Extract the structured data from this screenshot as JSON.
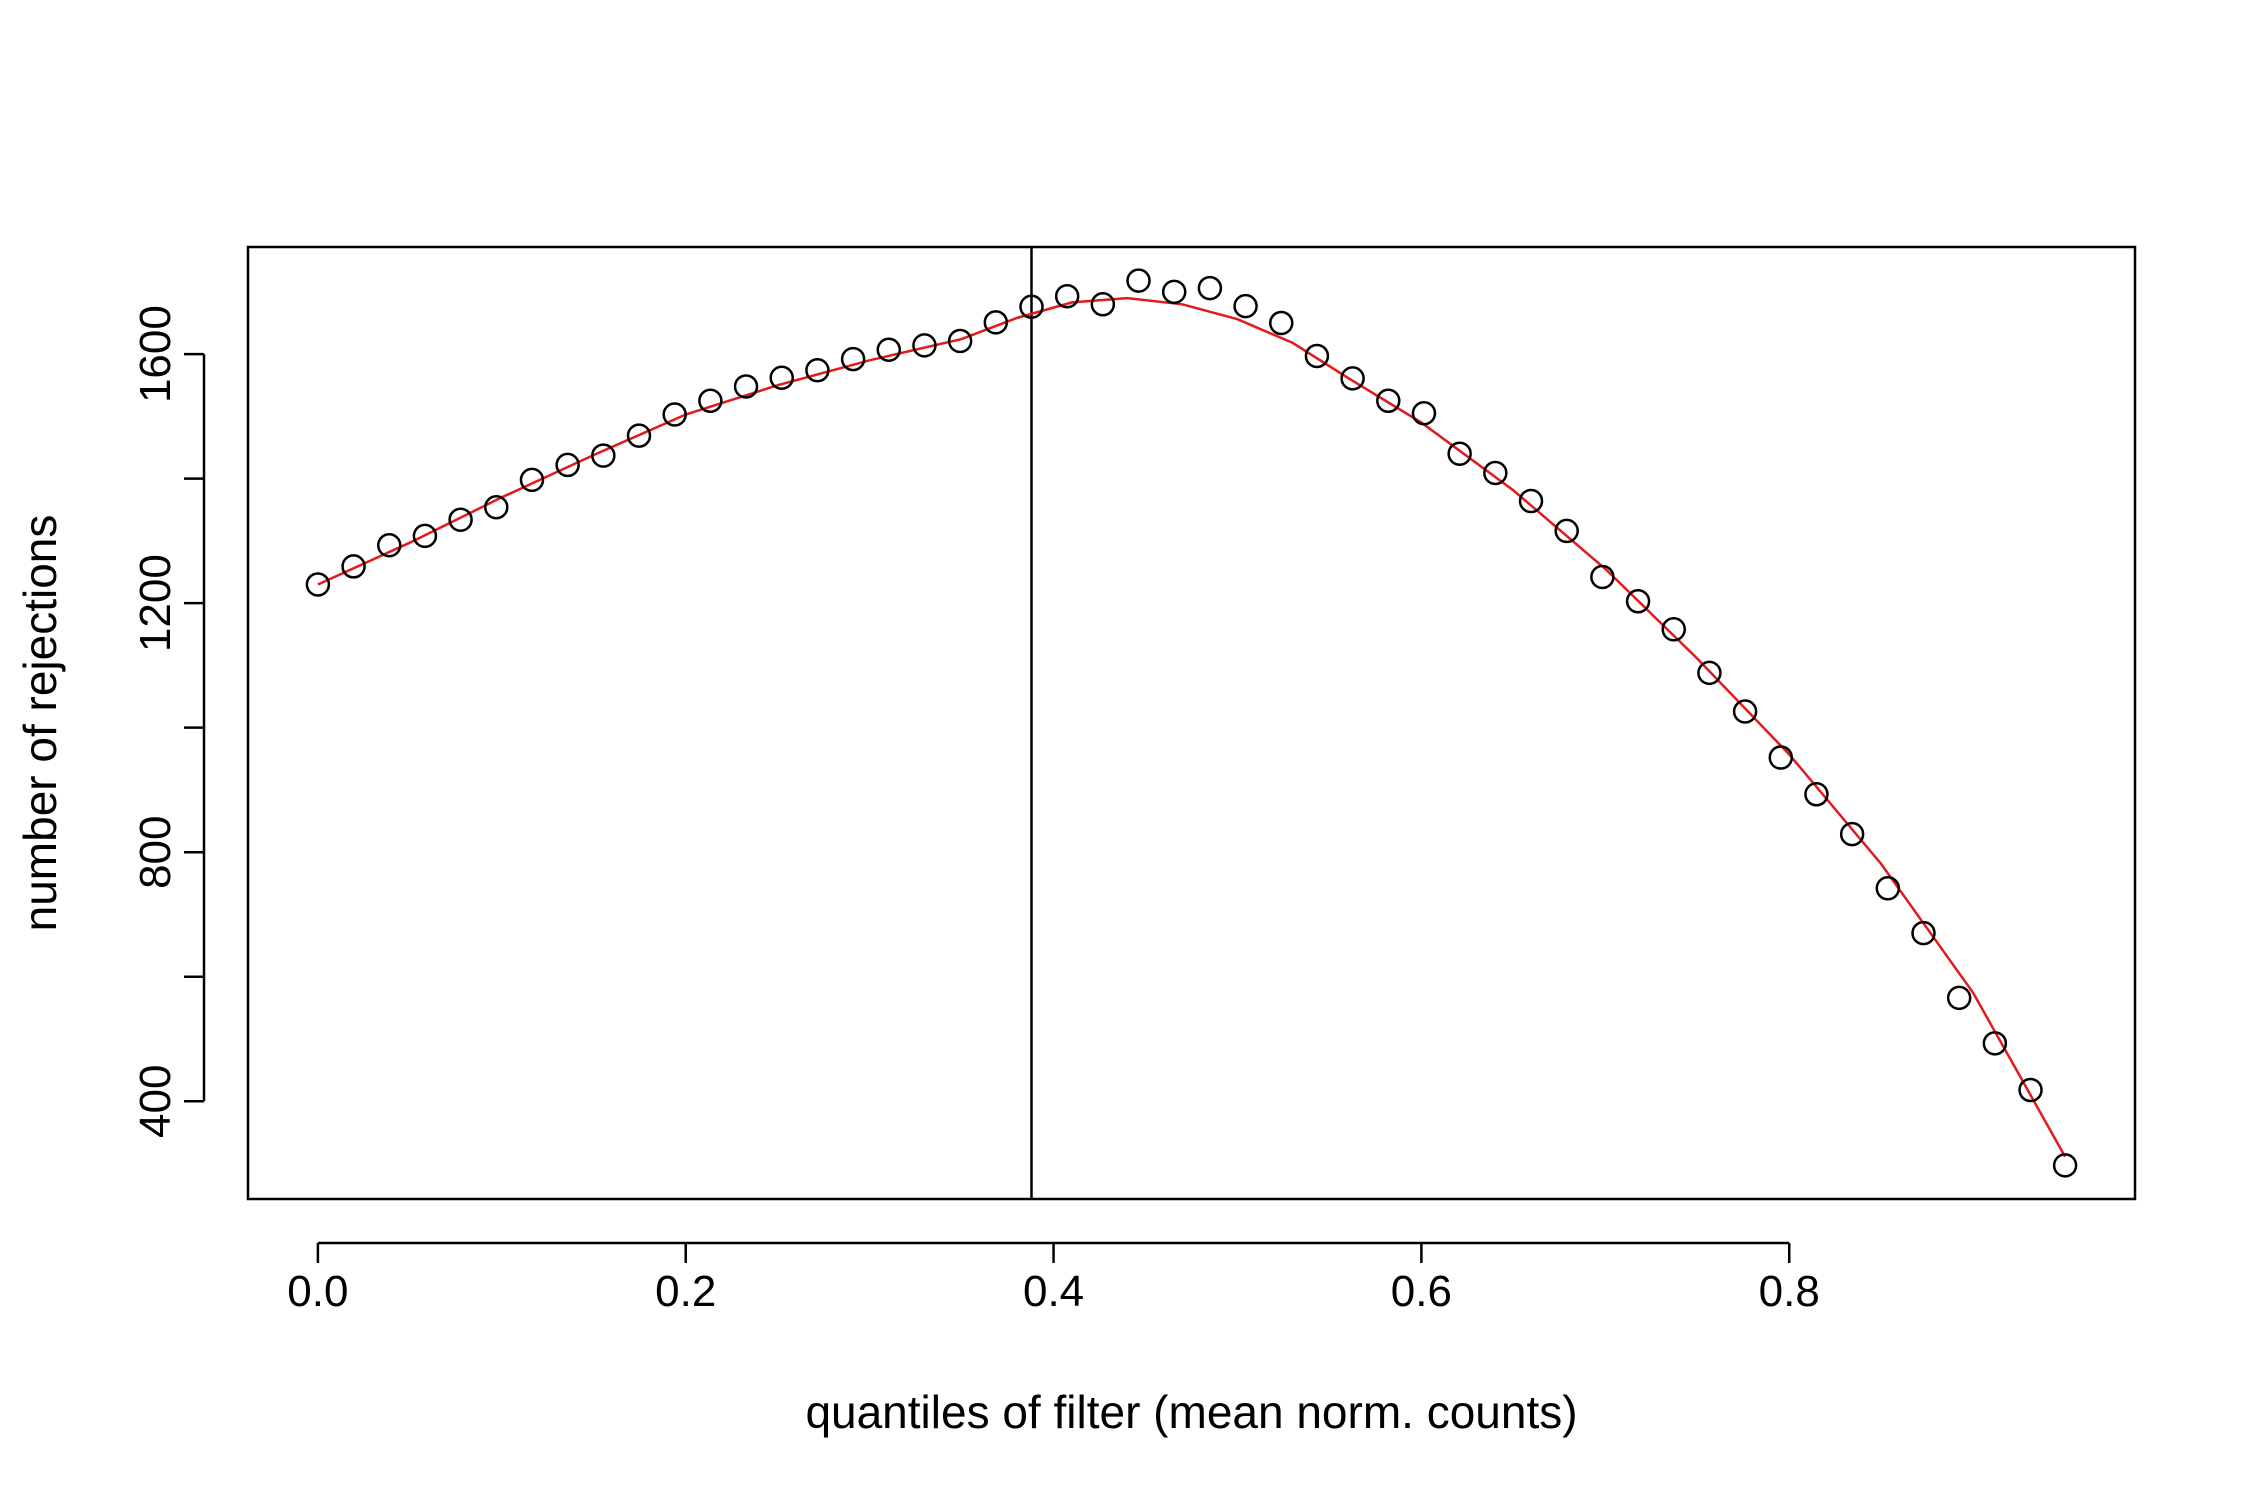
{
  "chart_data": {
    "type": "scatter",
    "title": "",
    "xlabel": "quantiles of filter (mean norm. counts)",
    "ylabel": "number of rejections",
    "xlim": [
      -0.038,
      0.988
    ],
    "ylim": [
      243,
      1772
    ],
    "xticks": [
      0.0,
      0.2,
      0.4,
      0.6,
      0.8
    ],
    "xtick_labels": [
      "0.0",
      "0.2",
      "0.4",
      "0.6",
      "0.8"
    ],
    "yticks": [
      400,
      600,
      800,
      1000,
      1200,
      1400,
      1600
    ],
    "ytick_labels": [
      "400",
      "",
      "800",
      "",
      "1200",
      "",
      "1600"
    ],
    "grid": false,
    "legend": "none",
    "vline_x": 0.388,
    "colors": {
      "points": "#000000",
      "fit": "#e31a1c",
      "vline": "#000000",
      "axes": "#000000"
    },
    "series": [
      {
        "kind": "points",
        "x": [
          0.0,
          0.0194,
          0.0388,
          0.0582,
          0.0776,
          0.097,
          0.1164,
          0.1358,
          0.1552,
          0.1746,
          0.194,
          0.2134,
          0.2328,
          0.2522,
          0.2716,
          0.291,
          0.3104,
          0.3298,
          0.3492,
          0.3686,
          0.388,
          0.4074,
          0.4268,
          0.4462,
          0.4656,
          0.485,
          0.5044,
          0.5238,
          0.5432,
          0.5626,
          0.582,
          0.6014,
          0.6208,
          0.6402,
          0.6596,
          0.679,
          0.6984,
          0.7178,
          0.7372,
          0.7566,
          0.776,
          0.7954,
          0.8148,
          0.8342,
          0.8536,
          0.873,
          0.8924,
          0.9118,
          0.9312,
          0.95
        ],
        "y": [
          1230,
          1259,
          1293,
          1308,
          1334,
          1354,
          1398,
          1422,
          1437,
          1469,
          1503,
          1525,
          1548,
          1562,
          1574,
          1592,
          1607,
          1614,
          1621,
          1651,
          1676,
          1693,
          1680,
          1718,
          1700,
          1706,
          1677,
          1650,
          1597,
          1561,
          1525,
          1505,
          1440,
          1409,
          1364,
          1316,
          1242,
          1203,
          1158,
          1088,
          1026,
          952,
          893,
          829,
          742,
          670,
          566,
          493,
          418,
          297
        ]
      },
      {
        "kind": "fit",
        "x": [
          0.0,
          0.05,
          0.1,
          0.15,
          0.2,
          0.25,
          0.3,
          0.35,
          0.38,
          0.41,
          0.44,
          0.47,
          0.5,
          0.53,
          0.56,
          0.6,
          0.65,
          0.7,
          0.75,
          0.8,
          0.85,
          0.9,
          0.95
        ],
        "y": [
          1230,
          1297,
          1370,
          1438,
          1503,
          1550,
          1590,
          1624,
          1658,
          1683,
          1690,
          1680,
          1656,
          1618,
          1562,
          1490,
          1381,
          1255,
          1111,
          957,
          781,
          574,
          311
        ]
      }
    ]
  }
}
